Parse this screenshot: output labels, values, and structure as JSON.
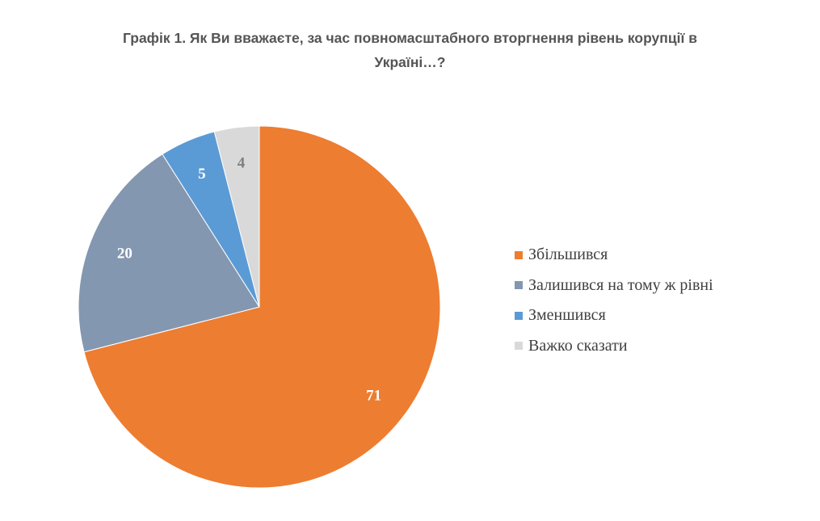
{
  "chart_data": {
    "type": "pie",
    "title_lines": [
      "Графік 1. Як Ви вважаєте, за час повномасштабного вторгнення рівень корупції в",
      "Україні…?"
    ],
    "categories": [
      "Збільшився",
      "Залишився на тому ж рівні",
      "Зменшився",
      "Важко сказати"
    ],
    "values": [
      71,
      20,
      5,
      4
    ],
    "data_labels": [
      "71",
      "20",
      "5",
      "4"
    ],
    "colors": [
      "#ED7D31",
      "#8497B0",
      "#5B9BD5",
      "#D9D9D9"
    ],
    "label_colors": [
      "#ffffff",
      "#ffffff",
      "#ffffff",
      "#7f7f7f"
    ],
    "legend_position": "right",
    "start_angle": "12 o'clock",
    "direction": "clockwise"
  }
}
